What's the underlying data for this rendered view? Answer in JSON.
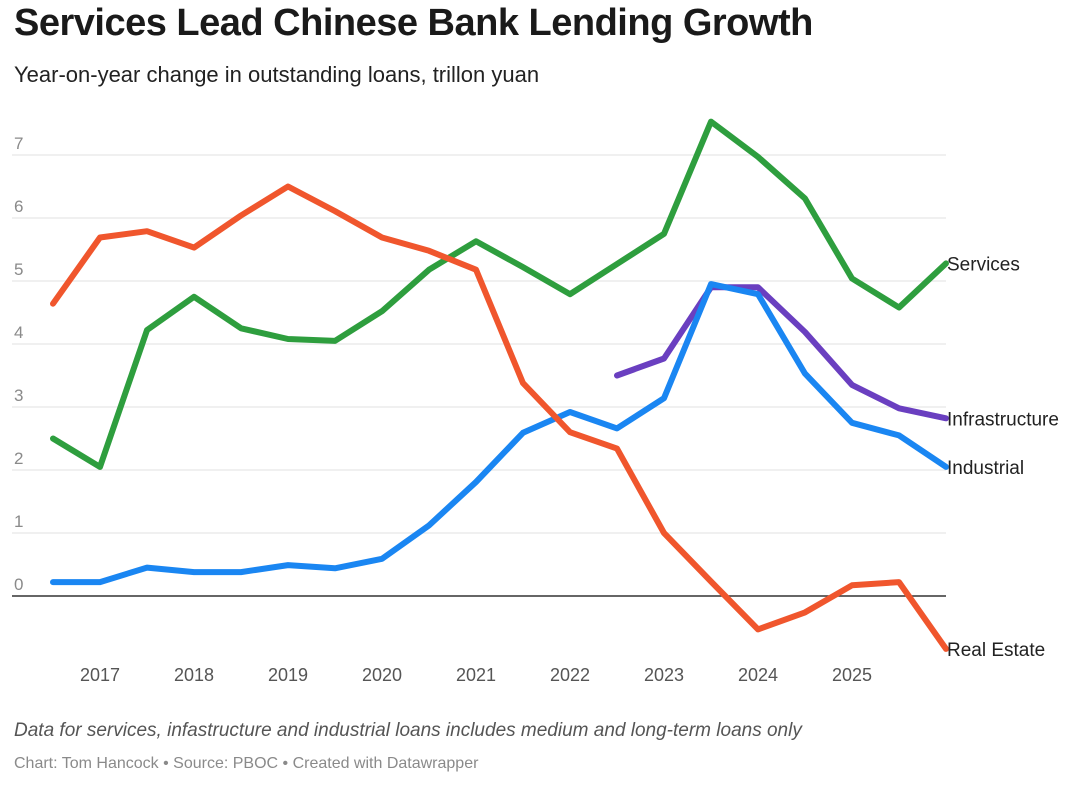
{
  "header": {
    "title": "Services Lead Chinese Bank Lending Growth",
    "subtitle": "Year-on-year change in outstanding loans, trillon yuan"
  },
  "footer": {
    "note": "Data for services, infastructure and industrial loans includes medium and long-term loans only",
    "credit": "Chart: Tom Hancock • Source: PBOC • Created with Datawrapper"
  },
  "chart_data": {
    "type": "line",
    "title": "Services Lead Chinese Bank Lending Growth",
    "subtitle": "Year-on-year change in outstanding loans, trillon yuan",
    "xlabel": "",
    "ylabel": "",
    "x": [
      2016.5,
      2017.0,
      2017.5,
      2018.0,
      2018.5,
      2019.0,
      2019.5,
      2020.0,
      2020.5,
      2021.0,
      2021.5,
      2022.0,
      2022.5,
      2023.0,
      2023.5,
      2024.0,
      2024.5,
      2025.0,
      2025.5,
      2026.0
    ],
    "xlim": [
      2016.5,
      2026.0
    ],
    "x_ticks": [
      {
        "value": 2017,
        "label": "2017"
      },
      {
        "value": 2018,
        "label": "2018"
      },
      {
        "value": 2019,
        "label": "2019"
      },
      {
        "value": 2020,
        "label": "2020"
      },
      {
        "value": 2021,
        "label": "2021"
      },
      {
        "value": 2022,
        "label": "2022"
      },
      {
        "value": 2023,
        "label": "2023"
      },
      {
        "value": 2024,
        "label": "2024"
      },
      {
        "value": 2025,
        "label": "2025"
      }
    ],
    "ylim": [
      -1,
      7.5
    ],
    "y_ticks": [
      {
        "value": 0,
        "label": "0"
      },
      {
        "value": 1,
        "label": "1"
      },
      {
        "value": 2,
        "label": "2"
      },
      {
        "value": 3,
        "label": "3"
      },
      {
        "value": 4,
        "label": "4"
      },
      {
        "value": 5,
        "label": "5"
      },
      {
        "value": 6,
        "label": "6"
      },
      {
        "value": 7,
        "label": "7"
      }
    ],
    "grid": true,
    "legend": "direct-labels-right",
    "series": [
      {
        "name": "Services",
        "color": "#2e9e3e",
        "values": [
          2.5,
          2.05,
          4.22,
          4.75,
          4.25,
          4.08,
          4.05,
          4.52,
          5.18,
          5.63,
          5.22,
          4.79,
          5.27,
          5.75,
          7.53,
          6.97,
          6.31,
          5.04,
          4.58,
          5.28
        ]
      },
      {
        "name": "Infrastructure",
        "color": "#6a3fc0",
        "values": [
          null,
          null,
          null,
          null,
          null,
          null,
          null,
          null,
          null,
          null,
          null,
          null,
          3.5,
          3.77,
          4.9,
          4.9,
          4.19,
          3.35,
          2.98,
          2.82
        ]
      },
      {
        "name": "Industrial",
        "color": "#1a86f2",
        "values": [
          0.22,
          0.22,
          0.45,
          0.38,
          0.38,
          0.49,
          0.44,
          0.59,
          1.12,
          1.81,
          2.59,
          2.92,
          2.66,
          3.14,
          4.95,
          4.79,
          3.53,
          2.75,
          2.55,
          2.05
        ]
      },
      {
        "name": "Real Estate",
        "color": "#f0562d",
        "values": [
          4.64,
          5.69,
          5.79,
          5.53,
          6.04,
          6.5,
          6.11,
          5.69,
          5.48,
          5.18,
          3.38,
          2.6,
          2.34,
          1.0,
          0.23,
          -0.53,
          -0.26,
          0.17,
          0.22,
          -0.84
        ]
      }
    ]
  }
}
